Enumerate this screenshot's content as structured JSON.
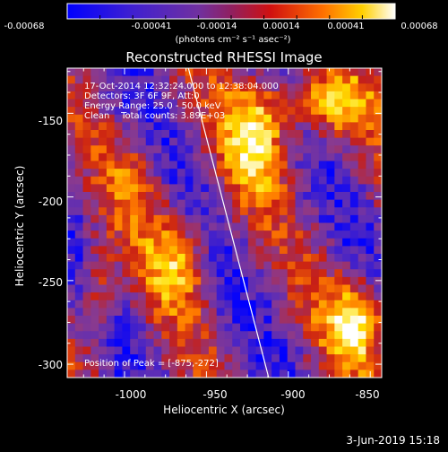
{
  "colorbar": {
    "tick_labels": [
      "-0.00068",
      "-0.00041",
      "-0.00014",
      "0.00014",
      "0.00041",
      "0.00068"
    ],
    "unit_label": "(photons cm⁻² s⁻¹ asec⁻²)",
    "range": [
      -0.00068,
      0.00068
    ]
  },
  "image": {
    "title": "Reconstructed RHESSI Image",
    "xlabel": "Heliocentric X (arcsec)",
    "ylabel": "Heliocentric Y (arcsec)",
    "x_ticks": [
      "-1000",
      "-950",
      "-900",
      "-850"
    ],
    "y_ticks": [
      "-150",
      "-200",
      "-250",
      "-300"
    ],
    "xlim": [
      -1035,
      -843
    ],
    "ylim": [
      -308,
      -123
    ],
    "info_lines": [
      "17-Oct-2014 12:32:24.000 to 12:38:04.000",
      "Detectors: 3F 6F 9F, Att:0",
      "Energy Range: 25.0 - 50.0 keV",
      "Clean    Total counts: 3.89E+03"
    ],
    "peak_label": "Position of Peak = [-875,-272]",
    "limb_line": {
      "start": [
        -961,
        -123
      ],
      "end": [
        -912,
        -308
      ]
    },
    "colors": {
      "palette": [
        "#0000ff",
        "#5a2cb8",
        "#8a3a8e",
        "#c81e14",
        "#ff7a00",
        "#ffe000",
        "#ffffff"
      ]
    }
  },
  "footer": {
    "date": "3-Jun-2019 15:18"
  }
}
